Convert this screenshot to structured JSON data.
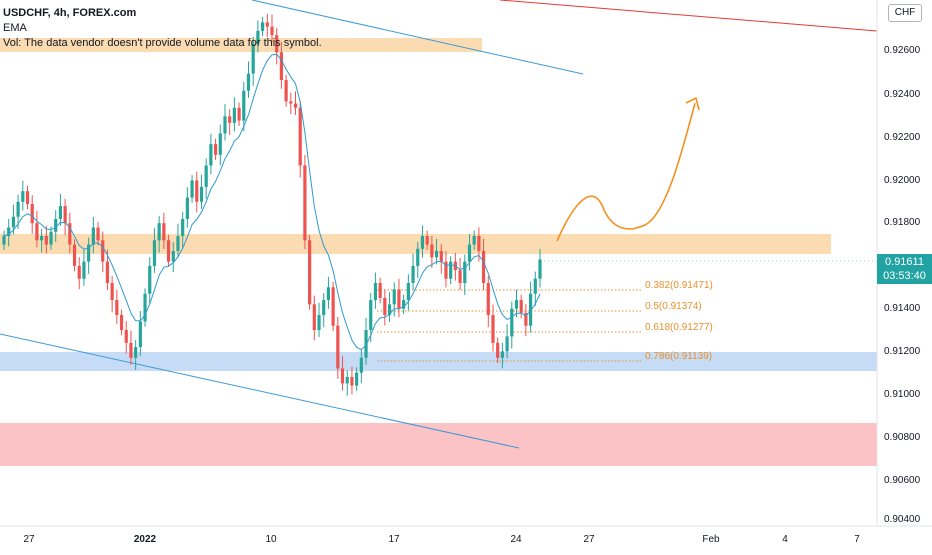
{
  "legend": {
    "symbol": "USDCHF, 4h, FOREX.com",
    "indicator": "EMA",
    "volume_note": "Vol: The data vendor doesn't provide volume data for this symbol."
  },
  "price_axis": {
    "ticks": [
      "0.92600",
      "0.92400",
      "0.92200",
      "0.92000",
      "0.91800",
      "0.91400",
      "0.91200",
      "0.91000",
      "0.90800",
      "0.90600",
      "0.90400"
    ],
    "currency": "CHF",
    "current_price": "0.91611",
    "countdown": "03:53:40"
  },
  "time_axis": {
    "ticks": [
      "27",
      "2022",
      "10",
      "17",
      "24",
      "27",
      "Feb",
      "4",
      "7"
    ]
  },
  "fib_levels": [
    "0.382(0.91471)",
    "0.5(0.91374)",
    "0.618(0.91277)",
    "0.786(0.91139)"
  ],
  "colors": {
    "up": "#26a69a",
    "down": "#ef5350",
    "ema": "#2f9ad1",
    "trendline": "#3d9ad6",
    "resistance_line": "#e53935",
    "orange_zone": "#fbd7a8",
    "blue_zone": "#c6dbf5",
    "red_zone": "#fbc3c5",
    "projection": "#f5911e",
    "fib": "#e8912d"
  },
  "chart_data": {
    "type": "candlestick",
    "symbol": "USDCHF",
    "timeframe": "4h",
    "ylim": [
      0.904,
      0.928
    ],
    "current_price": 0.91611,
    "fib_retracement": [
      {
        "ratio": 0.382,
        "price": 0.91471
      },
      {
        "ratio": 0.5,
        "price": 0.91374
      },
      {
        "ratio": 0.618,
        "price": 0.91277
      },
      {
        "ratio": 0.786,
        "price": 0.91139
      }
    ],
    "zones": [
      {
        "type": "supply",
        "from": 0.9259,
        "to": 0.9266
      },
      {
        "type": "resistance",
        "from": 0.9164,
        "to": 0.9174
      },
      {
        "type": "support",
        "from": 0.9109,
        "to": 0.9118
      },
      {
        "type": "demand",
        "from": 0.9065,
        "to": 0.9086
      }
    ],
    "price_path": [
      0.9172,
      0.9176,
      0.9181,
      0.9188,
      0.9193,
      0.9187,
      0.9178,
      0.917,
      0.9172,
      0.9168,
      0.9174,
      0.918,
      0.9186,
      0.9178,
      0.9168,
      0.9158,
      0.9152,
      0.916,
      0.9168,
      0.9176,
      0.917,
      0.916,
      0.915,
      0.9142,
      0.9135,
      0.9128,
      0.9122,
      0.9115,
      0.912,
      0.9132,
      0.9145,
      0.9158,
      0.917,
      0.9178,
      0.917,
      0.916,
      0.9165,
      0.9172,
      0.918,
      0.919,
      0.9198,
      0.9188,
      0.9195,
      0.9205,
      0.9215,
      0.921,
      0.922,
      0.9228,
      0.9225,
      0.9232,
      0.9226,
      0.924,
      0.9248,
      0.9262,
      0.9268,
      0.9272,
      0.927,
      0.9266,
      0.9258,
      0.9245,
      0.9235,
      0.9234,
      0.9232,
      0.9205,
      0.917,
      0.914,
      0.9128,
      0.9135,
      0.9142,
      0.9148,
      0.913,
      0.911,
      0.9103,
      0.9106,
      0.9102,
      0.9108,
      0.9115,
      0.9128,
      0.9142,
      0.915,
      0.9143,
      0.9135,
      0.914,
      0.9147,
      0.9138,
      0.9142,
      0.915,
      0.9158,
      0.9166,
      0.9172,
      0.9168,
      0.9162,
      0.9165,
      0.916,
      0.9152,
      0.916,
      0.9156,
      0.915,
      0.916,
      0.9168,
      0.9172,
      0.9165,
      0.915,
      0.9135,
      0.9122,
      0.9115,
      0.9118,
      0.9125,
      0.9138,
      0.9142,
      0.9136,
      0.913,
      0.9145,
      0.9152,
      0.9161
    ]
  }
}
